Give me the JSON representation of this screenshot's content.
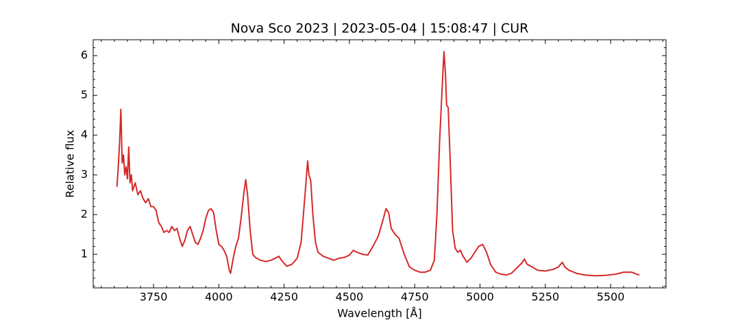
{
  "chart_data": {
    "type": "line",
    "title": "Nova Sco 2023 | 2023-05-04 | 15:08:47 | CUR",
    "xlabel": "Wavelength [Å]",
    "ylabel": "Relative flux",
    "color": "#d62728",
    "xlim": [
      3519,
      5712
    ],
    "ylim": [
      0.155,
      6.4
    ],
    "xticks": [
      3750,
      4000,
      4250,
      4500,
      4750,
      5000,
      5250,
      5500
    ],
    "yticks": [
      1,
      2,
      3,
      4,
      5,
      6
    ],
    "xminorticks": [
      3550,
      3600,
      3650,
      3700,
      3800,
      3850,
      3900,
      3950,
      4050,
      4100,
      4150,
      4200,
      4300,
      4350,
      4400,
      4450,
      4550,
      4600,
      4650,
      4700,
      4800,
      4850,
      4900,
      4950,
      5050,
      5100,
      5150,
      5200,
      5300,
      5350,
      5400,
      5450,
      5550,
      5600,
      5650,
      5700
    ],
    "yminorticks": [
      0.2,
      0.4,
      0.6,
      0.8,
      1.2,
      1.4,
      1.6,
      1.8,
      2.2,
      2.4,
      2.6,
      2.8,
      3.2,
      3.4,
      3.6,
      3.8,
      4.2,
      4.4,
      4.6,
      4.8,
      5.2,
      5.4,
      5.6,
      5.8,
      6.2,
      6.4
    ],
    "x": [
      3610,
      3615,
      3620,
      3625,
      3630,
      3635,
      3640,
      3645,
      3650,
      3655,
      3660,
      3665,
      3670,
      3680,
      3690,
      3700,
      3710,
      3720,
      3730,
      3740,
      3750,
      3760,
      3770,
      3780,
      3790,
      3800,
      3810,
      3820,
      3830,
      3840,
      3850,
      3860,
      3870,
      3880,
      3890,
      3900,
      3910,
      3920,
      3930,
      3940,
      3950,
      3960,
      3970,
      3980,
      3990,
      4000,
      4010,
      4020,
      4030,
      4040,
      4045,
      4055,
      4065,
      4075,
      4085,
      4095,
      4103,
      4110,
      4120,
      4130,
      4140,
      4160,
      4180,
      4200,
      4215,
      4230,
      4240,
      4260,
      4280,
      4300,
      4315,
      4330,
      4340,
      4345,
      4352,
      4360,
      4370,
      4380,
      4400,
      4420,
      4440,
      4460,
      4480,
      4500,
      4515,
      4530,
      4550,
      4570,
      4590,
      4610,
      4630,
      4640,
      4650,
      4660,
      4675,
      4690,
      4710,
      4730,
      4750,
      4770,
      4790,
      4810,
      4825,
      4835,
      4845,
      4855,
      4862,
      4868,
      4872,
      4878,
      4885,
      4895,
      4905,
      4915,
      4925,
      4935,
      4950,
      4965,
      4980,
      4995,
      5010,
      5025,
      5040,
      5060,
      5080,
      5100,
      5120,
      5140,
      5160,
      5170,
      5180,
      5200,
      5220,
      5250,
      5280,
      5300,
      5315,
      5325,
      5340,
      5370,
      5400,
      5440,
      5480,
      5520,
      5550,
      5580,
      5600,
      5610
    ],
    "values": [
      2.7,
      3.2,
      3.8,
      4.65,
      3.3,
      3.5,
      3.0,
      3.2,
      2.9,
      3.7,
      2.8,
      3.0,
      2.6,
      2.8,
      2.5,
      2.6,
      2.4,
      2.3,
      2.4,
      2.2,
      2.2,
      2.1,
      1.8,
      1.7,
      1.55,
      1.6,
      1.55,
      1.7,
      1.6,
      1.65,
      1.4,
      1.2,
      1.35,
      1.6,
      1.7,
      1.5,
      1.3,
      1.25,
      1.4,
      1.6,
      1.9,
      2.1,
      2.15,
      2.05,
      1.6,
      1.25,
      1.2,
      1.1,
      0.95,
      0.6,
      0.52,
      0.9,
      1.2,
      1.4,
      1.9,
      2.5,
      2.88,
      2.5,
      1.6,
      1.0,
      0.92,
      0.85,
      0.82,
      0.85,
      0.9,
      0.95,
      0.85,
      0.7,
      0.75,
      0.9,
      1.3,
      2.5,
      3.35,
      3.0,
      2.85,
      2.0,
      1.3,
      1.05,
      0.95,
      0.9,
      0.85,
      0.9,
      0.92,
      0.98,
      1.1,
      1.05,
      1.0,
      0.98,
      1.2,
      1.45,
      1.9,
      2.15,
      2.05,
      1.65,
      1.5,
      1.4,
      1.0,
      0.68,
      0.6,
      0.55,
      0.55,
      0.6,
      0.85,
      2.0,
      3.8,
      5.2,
      6.1,
      5.5,
      4.75,
      4.7,
      3.5,
      1.6,
      1.15,
      1.05,
      1.1,
      0.95,
      0.8,
      0.9,
      1.05,
      1.2,
      1.25,
      1.05,
      0.75,
      0.55,
      0.5,
      0.48,
      0.52,
      0.65,
      0.78,
      0.88,
      0.75,
      0.68,
      0.6,
      0.58,
      0.62,
      0.68,
      0.8,
      0.68,
      0.6,
      0.52,
      0.48,
      0.46,
      0.47,
      0.5,
      0.55,
      0.55,
      0.5,
      0.48
    ]
  }
}
